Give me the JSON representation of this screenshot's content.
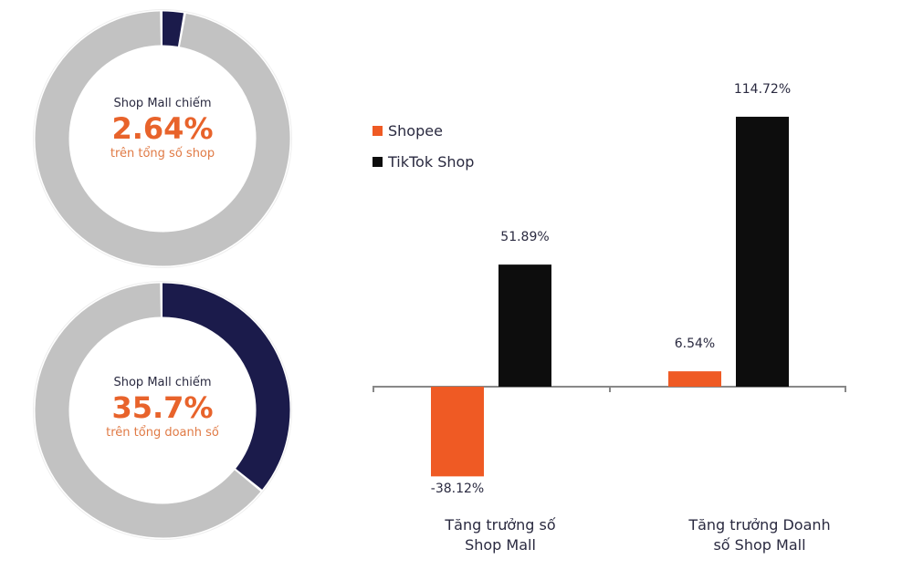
{
  "donuts": [
    {
      "label": "Shop Mall chiếm",
      "value_text": "2.64%",
      "value": 2.64,
      "sub": "trên tổng số shop"
    },
    {
      "label": "Shop Mall chiếm",
      "value_text": "35.7%",
      "value": 35.7,
      "sub": "trên tổng doanh số"
    }
  ],
  "colors": {
    "shopee": "#ef5a24",
    "tiktok": "#0d0d0d",
    "highlight": "#1b1b4b",
    "rest": "#c2c2c2",
    "axis": "#888888"
  },
  "chart_data": {
    "type": "bar",
    "categories": [
      "Tăng trưởng số Shop Mall",
      "Tăng trưởng Doanh số Shop Mall"
    ],
    "category_lines": [
      [
        "Tăng trưởng số",
        "Shop Mall"
      ],
      [
        "Tăng trưởng Doanh",
        "số Shop Mall"
      ]
    ],
    "series": [
      {
        "name": "Shopee",
        "values": [
          -38.12,
          6.54
        ],
        "labels": [
          "-38.12%",
          "6.54%"
        ]
      },
      {
        "name": "TikTok Shop",
        "values": [
          51.89,
          114.72
        ],
        "labels": [
          "51.89%",
          "114.72%"
        ]
      }
    ],
    "legend": "top-left",
    "grid": false
  }
}
